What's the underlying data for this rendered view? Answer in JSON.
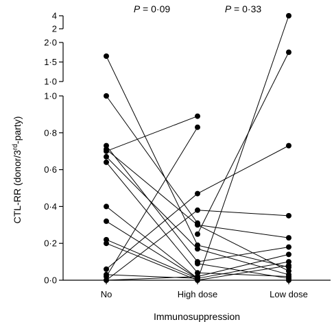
{
  "chart_data": {
    "type": "line",
    "xlabel": "Immunosuppression",
    "ylabel_main": "CTL-RR (donor/3",
    "ylabel_sup": "rd",
    "ylabel_tail": "-party)",
    "categories": [
      "No",
      "High dose",
      "Low dose"
    ],
    "annotations": [
      {
        "p_label": "P",
        "text": " = 0·09",
        "between": [
          0,
          1
        ]
      },
      {
        "p_label": "P",
        "text": " = 0·33",
        "between": [
          1,
          2
        ]
      }
    ],
    "y_segments": [
      {
        "range": [
          0,
          1.0
        ],
        "ticks": [
          {
            "v": 0.0,
            "label": "0·0"
          },
          {
            "v": 0.2,
            "label": "0·2"
          },
          {
            "v": 0.4,
            "label": "0·4"
          },
          {
            "v": 0.6,
            "label": "0·6"
          },
          {
            "v": 0.8,
            "label": "0·8"
          },
          {
            "v": 1.0,
            "label": "1·0"
          }
        ]
      },
      {
        "range": [
          1.0,
          2.0
        ],
        "ticks": [
          {
            "v": 1.0,
            "label": "1·0"
          },
          {
            "v": 1.5,
            "label": "1·5"
          },
          {
            "v": 2.0,
            "label": "2·0"
          }
        ]
      },
      {
        "range": [
          2,
          4
        ],
        "ticks": [
          {
            "v": 2,
            "label": "2"
          },
          {
            "v": 4,
            "label": "4"
          }
        ]
      }
    ],
    "subjects": [
      {
        "No": 1.65,
        "High dose": 0.19
      },
      {
        "No": 1.0,
        "High dose": 0.31
      },
      {
        "No": 0.73,
        "High dose": 0.1
      },
      {
        "No": 0.71,
        "High dose": 0.3,
        "Low dose": 0.05
      },
      {
        "No": 0.7,
        "High dose": 0.89
      },
      {
        "No": 0.67,
        "High dose": 0.17,
        "Low dose": 0.03
      },
      {
        "No": 0.64,
        "High dose": 0.04
      },
      {
        "No": 0.4,
        "High dose": 0.01
      },
      {
        "No": 0.32,
        "High dose": 0.01
      },
      {
        "No": 0.22,
        "High dose": 0.01
      },
      {
        "No": 0.2,
        "High dose": 0.0
      },
      {
        "No": 0.06,
        "High dose": 0.47
      },
      {
        "No": 0.03,
        "High dose": 0.01
      },
      {
        "No": 0.02,
        "High dose": 0.83
      },
      {
        "No": 0.0,
        "High dose": 0.38
      },
      {
        "No": 0.0,
        "High dose": 0.02
      },
      {
        "High dose": 0.47,
        "Low dose": 0.73
      },
      {
        "High dose": 0.38,
        "Low dose": 0.35
      },
      {
        "High dose": 0.3,
        "Low dose": 0.23
      },
      {
        "High dose": 0.25,
        "Low dose": 1.75
      },
      {
        "High dose": 0.19,
        "Low dose": 0.07
      },
      {
        "High dose": 0.1,
        "Low dose": 0.18
      },
      {
        "High dose": 0.09,
        "Low dose": 0.01
      },
      {
        "High dose": 0.04,
        "Low dose": 0.02
      },
      {
        "High dose": 0.02,
        "Low dose": 0.14
      },
      {
        "High dose": 0.01,
        "Low dose": 0.1
      },
      {
        "High dose": 0.0,
        "Low dose": 4.0
      },
      {
        "High dose": 0.0,
        "Low dose": 0.08
      },
      {
        "High dose": 0.0,
        "Low dose": 0.0
      }
    ]
  }
}
